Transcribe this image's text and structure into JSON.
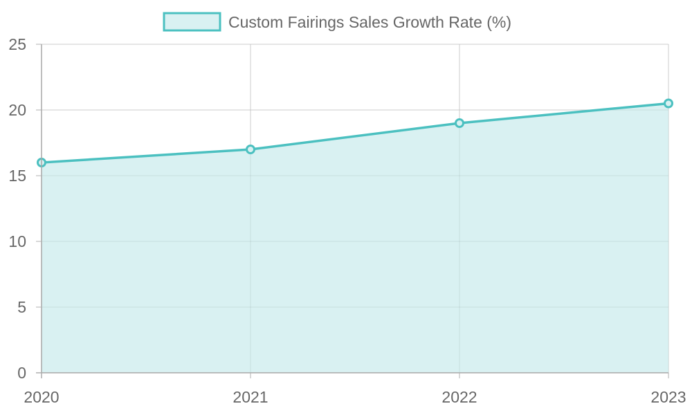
{
  "chart_data": {
    "type": "area",
    "categories": [
      "2020",
      "2021",
      "2022",
      "2023"
    ],
    "series": [
      {
        "name": "Custom Fairings Sales Growth Rate (%)",
        "values": [
          16,
          17,
          19,
          20.5
        ],
        "color": "#4bc0c0",
        "fill": "#d9f1f2"
      }
    ],
    "title": "",
    "xlabel": "",
    "ylabel": "",
    "ylim": [
      0,
      25
    ],
    "yticks": [
      0,
      5,
      10,
      15,
      20,
      25
    ],
    "grid": true,
    "legend_position": "top"
  }
}
